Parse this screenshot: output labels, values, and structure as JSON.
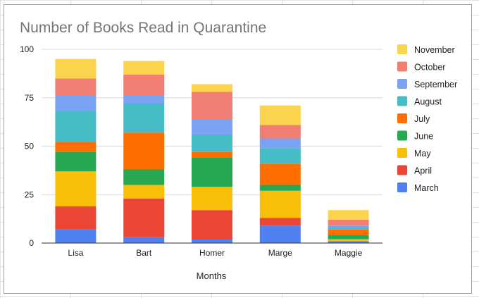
{
  "chart_data": {
    "type": "bar",
    "stacked": true,
    "title": "Number of Books Read in Quarantine",
    "xlabel": "Months",
    "ylabel": "",
    "ylim": [
      0,
      100
    ],
    "yticks": [
      0,
      25,
      50,
      75,
      100
    ],
    "grid": true,
    "legend_position": "right",
    "categories": [
      "Lisa",
      "Bart",
      "Homer",
      "Marge",
      "Maggie"
    ],
    "series": [
      {
        "name": "March",
        "color": "#4f81f0",
        "values": [
          7,
          3,
          2,
          9,
          1
        ]
      },
      {
        "name": "April",
        "color": "#ea4535",
        "values": [
          12,
          20,
          15,
          4,
          0
        ]
      },
      {
        "name": "May",
        "color": "#f9be07",
        "values": [
          18,
          7,
          12,
          14,
          1
        ]
      },
      {
        "name": "June",
        "color": "#27a853",
        "values": [
          10,
          8,
          15,
          3,
          2
        ]
      },
      {
        "name": "July",
        "color": "#ff6e00",
        "values": [
          5,
          19,
          3,
          11,
          3
        ]
      },
      {
        "name": "August",
        "color": "#45bcc6",
        "values": [
          16,
          15,
          9,
          8,
          1
        ]
      },
      {
        "name": "September",
        "color": "#7ba3f4",
        "values": [
          8,
          4,
          8,
          5,
          1
        ]
      },
      {
        "name": "October",
        "color": "#f17e72",
        "values": [
          9,
          11,
          14,
          7,
          3
        ]
      },
      {
        "name": "November",
        "color": "#fbd44e",
        "values": [
          10,
          7,
          4,
          10,
          5
        ]
      }
    ]
  }
}
